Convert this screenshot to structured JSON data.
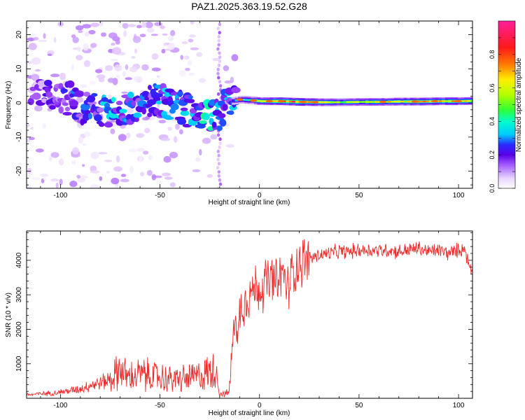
{
  "figure": {
    "title": "PAZ1.2025.363.19.52.G28"
  },
  "chart_data": [
    {
      "type": "heatmap",
      "panel": "spectrogram",
      "title": "PAZ1.2025.363.19.52.G28",
      "xlabel": "Height of straight line (km)",
      "ylabel": "Frequency (Hz)",
      "xlim": [
        -117,
        107
      ],
      "ylim": [
        -25,
        24
      ],
      "xticks": [
        -100,
        -50,
        0,
        50,
        100
      ],
      "yticks": [
        -20,
        -10,
        0,
        10,
        20
      ],
      "colorbar": {
        "label": "Normalized spectral amplitude",
        "range": [
          0.0,
          1.0
        ],
        "ticks": [
          0.0,
          0.2,
          0.4,
          0.6,
          0.8
        ],
        "colormap": [
          "#ffffff",
          "#e3c8ff",
          "#9b45ff",
          "#5a00e8",
          "#2a2aff",
          "#00c8ff",
          "#00ffcc",
          "#33ff33",
          "#b5ff00",
          "#ffee00",
          "#ff7a00",
          "#ff1a1a",
          "#ff1f9a"
        ]
      },
      "ridge": {
        "x": [
          -117,
          -110,
          -100,
          -95,
          -90,
          -85,
          -80,
          -75,
          -70,
          -65,
          -60,
          -55,
          -50,
          -45,
          -40,
          -35,
          -30,
          -25,
          -20,
          -15,
          -10,
          -5,
          0,
          10,
          20,
          30,
          40,
          50,
          60,
          70,
          80,
          90,
          100,
          107
        ],
        "frequency": [
          3.5,
          2.5,
          1.5,
          1.0,
          -1.0,
          -2.0,
          -2.0,
          -2.5,
          -2.0,
          -1.0,
          -1.5,
          1.0,
          0.5,
          -0.5,
          -1.5,
          -2.5,
          -3.5,
          -4.5,
          -3.0,
          0.5,
          1.0,
          0.8,
          0.5,
          0.5,
          0.3,
          0.2,
          0.2,
          0.3,
          0.3,
          0.4,
          0.4,
          0.5,
          0.5,
          0.6
        ],
        "amplitude": [
          0.15,
          0.2,
          0.25,
          0.3,
          0.3,
          0.3,
          0.35,
          0.4,
          0.35,
          0.35,
          0.35,
          0.3,
          0.35,
          0.4,
          0.35,
          0.35,
          0.4,
          0.45,
          0.3,
          0.35,
          0.45,
          0.55,
          0.7,
          0.8,
          0.85,
          0.7,
          0.6,
          0.65,
          0.7,
          0.7,
          0.8,
          0.75,
          0.75,
          0.7
        ]
      }
    },
    {
      "type": "line",
      "panel": "snr",
      "xlabel": "Height of straight line (km)",
      "ylabel": "SNR (10 * v/v)",
      "xlim": [
        -117,
        107
      ],
      "ylim": [
        0,
        4850
      ],
      "xticks": [
        -100,
        -50,
        0,
        50,
        100
      ],
      "yticks": [
        1000,
        2000,
        3000,
        4000
      ],
      "color": "#ee2b2b",
      "series": [
        {
          "name": "SNR",
          "x": [
            -117,
            -110,
            -105,
            -100,
            -95,
            -90,
            -85,
            -80,
            -75,
            -72,
            -70,
            -68,
            -65,
            -60,
            -55,
            -50,
            -45,
            -40,
            -35,
            -30,
            -27,
            -25,
            -23,
            -22,
            -21,
            -20,
            -18,
            -16,
            -15,
            -14,
            -13,
            -12,
            -11,
            -10,
            -8,
            -6,
            -4,
            -2,
            0,
            2,
            4,
            5,
            6,
            8,
            10,
            12,
            14,
            16,
            18,
            20,
            22,
            25,
            30,
            35,
            40,
            45,
            50,
            55,
            60,
            65,
            70,
            75,
            80,
            85,
            90,
            95,
            100,
            103,
            105,
            107
          ],
          "values": [
            100,
            130,
            150,
            180,
            220,
            280,
            380,
            450,
            550,
            700,
            900,
            700,
            600,
            700,
            650,
            600,
            550,
            550,
            580,
            650,
            700,
            750,
            850,
            900,
            500,
            150,
            120,
            150,
            300,
            1200,
            2000,
            2600,
            1500,
            2500,
            2800,
            3000,
            3100,
            3200,
            3200,
            3300,
            3400,
            3300,
            3500,
            3300,
            3400,
            3700,
            3100,
            3600,
            3800,
            3900,
            4000,
            4050,
            4150,
            4200,
            4250,
            4250,
            4300,
            4300,
            4280,
            4300,
            4250,
            4300,
            4350,
            4250,
            4300,
            4200,
            4300,
            4350,
            3900,
            3700
          ]
        }
      ]
    }
  ]
}
